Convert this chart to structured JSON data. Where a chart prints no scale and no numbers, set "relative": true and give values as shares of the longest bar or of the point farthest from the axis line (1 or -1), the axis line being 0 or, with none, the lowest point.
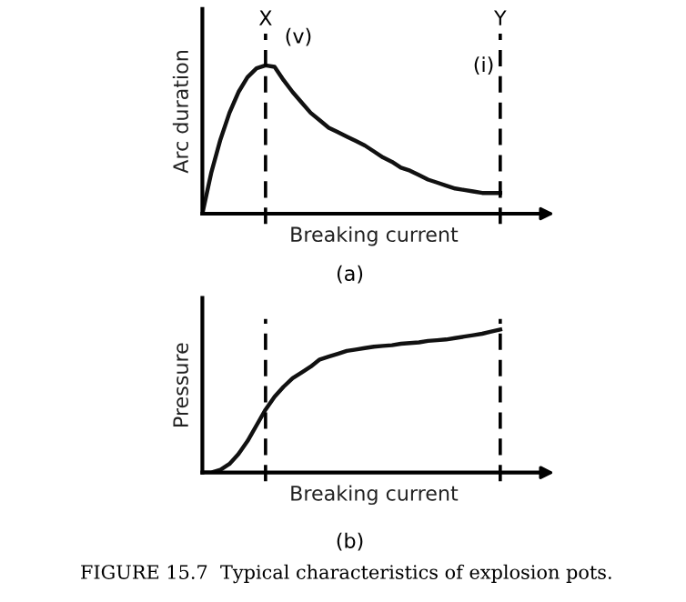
{
  "chart_data": [
    {
      "type": "line",
      "relative": true,
      "ylabel": "Arc duration",
      "xlabel": "Breaking current",
      "categories": [
        null,
        null,
        null,
        null,
        null,
        null,
        null,
        null,
        null,
        null,
        null,
        null,
        null,
        null,
        null,
        null,
        null,
        null,
        null,
        null,
        null,
        null,
        null,
        null,
        null,
        null,
        null,
        null,
        null,
        null,
        null,
        null,
        null,
        null,
        null,
        null,
        null,
        null
      ],
      "series": [
        {
          "color": "#111111",
          "values": [
            0,
            0.28,
            0.5,
            0.68,
            0.82,
            0.92,
            0.98,
            1.0,
            0.99,
            0.9,
            0.82,
            0.75,
            0.68,
            0.63,
            0.58,
            0.55,
            0.52,
            0.49,
            0.46,
            0.42,
            0.38,
            0.35,
            0.31,
            0.29,
            0.26,
            0.23,
            0.21,
            0.19,
            0.17,
            0.16,
            0.15,
            0.14,
            0.14,
            0.14,
            null,
            null,
            null,
            null
          ]
        }
      ],
      "annotations": [
        "X",
        "Y",
        "(v)",
        "(i)",
        "(a)"
      ],
      "marker": "none",
      "line_style": "solid"
    },
    {
      "type": "line",
      "relative": true,
      "ylabel": "Pressure",
      "xlabel": "Breaking current",
      "categories": [
        null,
        null,
        null,
        null,
        null,
        null,
        null,
        null,
        null,
        null,
        null,
        null,
        null,
        null,
        null,
        null,
        null,
        null,
        null,
        null,
        null,
        null,
        null,
        null,
        null,
        null,
        null,
        null,
        null,
        null,
        null,
        null,
        null,
        null,
        null,
        null,
        null,
        null
      ],
      "series": [
        {
          "color": "#111111",
          "values": [
            0,
            0,
            0.02,
            0.06,
            0.13,
            0.22,
            0.33,
            0.44,
            0.53,
            0.6,
            0.66,
            0.7,
            0.74,
            0.79,
            0.81,
            0.83,
            0.85,
            0.86,
            0.87,
            0.88,
            0.885,
            0.89,
            0.9,
            0.905,
            0.91,
            0.92,
            0.925,
            0.93,
            0.94,
            0.95,
            0.96,
            0.97,
            0.985,
            1.0,
            null,
            null,
            null,
            null
          ]
        }
      ],
      "annotations": [
        "(b)",
        "FIGURE 15.7  Typical characteristics of explosion pots."
      ],
      "marker": "none",
      "line_style": "solid"
    }
  ]
}
